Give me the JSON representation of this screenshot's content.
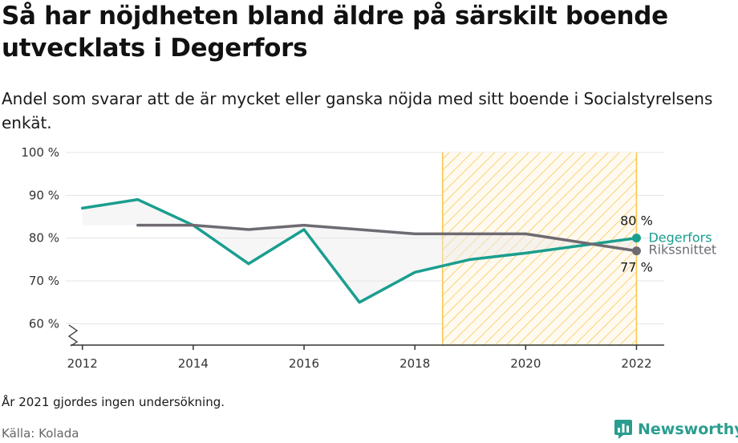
{
  "title": "Så har nöjdheten bland äldre på särskilt boende utvecklats i Degerfors",
  "subtitle": "Andel som svarar att de är mycket eller ganska nöjda med sitt boende i Socialstyrelsens enkät.",
  "note": "År 2021 gjordes ingen undersökning.",
  "source": "Källa: Kolada",
  "brand": "Newsworthy",
  "colors": {
    "degerfors": "#1a9e8f",
    "riket": "#6e6a72",
    "highlight": "#f6c64e",
    "fill": "#ebebeb"
  },
  "chart_data": {
    "type": "line",
    "xlim": [
      2011.7,
      2022.5
    ],
    "ylim": [
      55,
      100
    ],
    "x_ticks": [
      2012,
      2014,
      2016,
      2018,
      2020,
      2022
    ],
    "x_tick_labels": [
      "2012",
      "2014",
      "2016",
      "2018",
      "2020",
      "2022"
    ],
    "y_ticks": [
      60,
      70,
      80,
      90,
      100
    ],
    "y_tick_labels": [
      "60 %",
      "70 %",
      "80 %",
      "90 %",
      "100 %"
    ],
    "highlight_range": [
      2018.5,
      2022
    ],
    "series": [
      {
        "name": "Degerfors",
        "color": "#1a9e8f",
        "end_label": "80 %",
        "points": [
          [
            2012,
            87
          ],
          [
            2013,
            89
          ],
          [
            2014,
            83
          ],
          [
            2015,
            74
          ],
          [
            2016,
            82
          ],
          [
            2017,
            65
          ],
          [
            2018,
            72
          ],
          [
            2019,
            75
          ],
          [
            2020,
            76.5
          ],
          [
            2022,
            80
          ]
        ]
      },
      {
        "name": "Rikssnittet",
        "color": "#6e6a72",
        "end_label": "77 %",
        "points": [
          [
            2013,
            83
          ],
          [
            2014,
            83
          ],
          [
            2015,
            82
          ],
          [
            2016,
            83
          ],
          [
            2017,
            82
          ],
          [
            2018,
            81
          ],
          [
            2019,
            81
          ],
          [
            2020,
            81
          ],
          [
            2022,
            77
          ]
        ]
      }
    ]
  }
}
